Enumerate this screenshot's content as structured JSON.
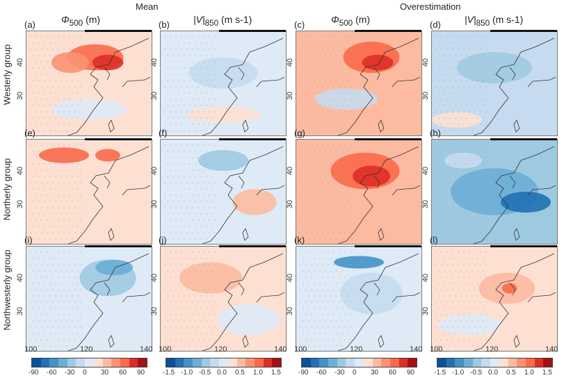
{
  "headers": {
    "mean": "Mean",
    "over": "Overestimation"
  },
  "columns": [
    {
      "var": "Φ",
      "sub": "500",
      "unit": "(m)"
    },
    {
      "var": "|V|",
      "sub": "850",
      "unit": "(m s-1)"
    },
    {
      "var": "Φ",
      "sub": "500",
      "unit": "(m)"
    },
    {
      "var": "|V|",
      "sub": "850",
      "unit": "(m s-1)"
    }
  ],
  "rows": [
    "Westerly group",
    "Northerly group",
    "Northwesterly group"
  ],
  "panel_labels": [
    "(a)",
    "(b)",
    "(c)",
    "(d)",
    "(e)",
    "(f)",
    "(g)",
    "(h)",
    "(i)",
    "(j)",
    "(k)",
    "(l)"
  ],
  "lon_ticks": [
    "100",
    "120",
    "140"
  ],
  "lat_ticks": [
    "40",
    "30"
  ],
  "colorbars": [
    {
      "ticks": [
        "-90",
        "-60",
        "-30",
        "0",
        "30",
        "60",
        "90"
      ]
    },
    {
      "ticks": [
        "-1.5",
        "-1.0",
        "-0.5",
        "0.0",
        "0.5",
        "1.0",
        "1.5"
      ]
    },
    {
      "ticks": [
        "-90",
        "-60",
        "-30",
        "0",
        "30",
        "60",
        "90"
      ]
    },
    {
      "ticks": [
        "-1.5",
        "-1.0",
        "-0.5",
        "0.0",
        "0.5",
        "1.0",
        "1.5"
      ]
    }
  ],
  "colors": {
    "scale": [
      "#08519c",
      "#2171b5",
      "#4292c6",
      "#6baed6",
      "#9ecae1",
      "#c6dbef",
      "#deebf7",
      "#fee0d2",
      "#fcbba1",
      "#fc9272",
      "#fb6a4a",
      "#de2d26",
      "#a50f15"
    ]
  }
}
